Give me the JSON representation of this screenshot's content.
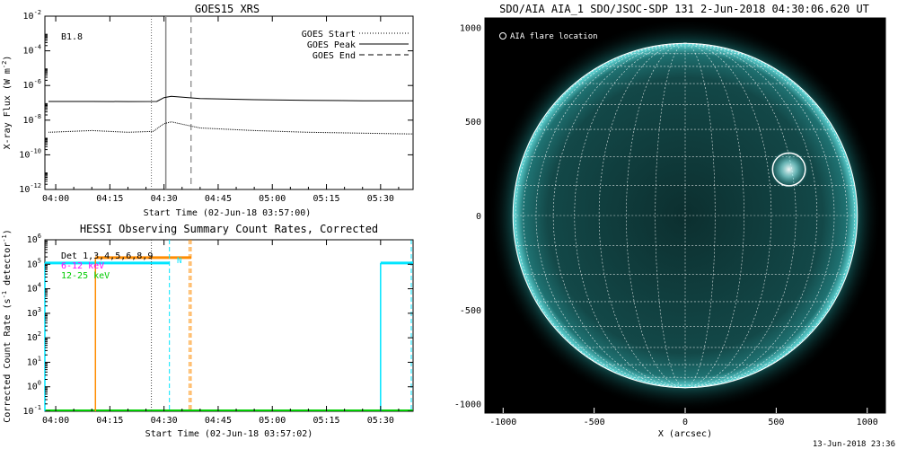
{
  "footer_timestamp": "13-Jun-2018 23:36",
  "colors": {
    "background": "#ffffff",
    "axes": "#000000",
    "goes_long": "#000000",
    "goes_short": "#000000",
    "hessi_det": "#000000",
    "hessi_band1": "#ff00ff",
    "hessi_band2": "#00cc00",
    "cyan_bars": "#00e5ff",
    "orange_bars": "#ff8c00",
    "sun_disk": "#0f3b3b",
    "sun_limb": "#7fffff",
    "grid": "#ffffff"
  },
  "chart_data": [
    {
      "type": "line",
      "title": "GOES15 XRS",
      "xlabel": "Start Time (02-Jun-18 03:57:00)",
      "ylabel": "X-ray Flux (W m^-2)",
      "ylabel_parts": {
        "main": "X-ray Flux (W m",
        "sup": "-2",
        "close": ")"
      },
      "yscale": "log",
      "xlim_min": [
        -3,
        99
      ],
      "ylim_exp": [
        -12,
        -2
      ],
      "x_ticks": [
        "04:00",
        "04:15",
        "04:30",
        "04:45",
        "05:00",
        "05:15",
        "05:30"
      ],
      "x_tick_min": [
        0,
        15,
        30,
        45,
        60,
        75,
        90
      ],
      "y_tick_exp": [
        -12,
        -10,
        -8,
        -6,
        -4,
        -2
      ],
      "annotation": "B1.8",
      "legend": [
        {
          "label": "GOES Start",
          "style": "dotted"
        },
        {
          "label": "GOES Peak",
          "style": "solid"
        },
        {
          "label": "GOES End",
          "style": "dashed"
        }
      ],
      "event_lines_min": {
        "start": 26.5,
        "peak": 30.5,
        "end": 37.5
      },
      "series": [
        {
          "name": "long",
          "x": [
            -2,
            10,
            20,
            28,
            30,
            32,
            40,
            55,
            70,
            85,
            99
          ],
          "y_exp": [
            -6.92,
            -6.92,
            -6.93,
            -6.92,
            -6.7,
            -6.62,
            -6.75,
            -6.82,
            -6.86,
            -6.88,
            -6.88
          ]
        },
        {
          "name": "short",
          "x": [
            -2,
            10,
            20,
            27,
            30,
            32,
            40,
            55,
            70,
            85,
            99
          ],
          "y_exp": [
            -8.7,
            -8.6,
            -8.7,
            -8.65,
            -8.2,
            -8.1,
            -8.45,
            -8.6,
            -8.7,
            -8.75,
            -8.8
          ]
        }
      ]
    },
    {
      "type": "line",
      "title": "HESSI Observing Summary Count Rates, Corrected",
      "xlabel": "Start Time (02-Jun-18 03:57:02)",
      "ylabel": "Corrected Count Rate (s^-1 detector^-1)",
      "ylabel_parts": {
        "main": "Corrected Count Rate (s",
        "sup1": "-1",
        "mid": " detector",
        "sup2": "-1",
        "close": ")"
      },
      "yscale": "log",
      "xlim_min": [
        -3,
        99
      ],
      "ylim_exp": [
        -1,
        6
      ],
      "x_ticks": [
        "04:00",
        "04:15",
        "04:30",
        "04:45",
        "05:00",
        "05:15",
        "05:30"
      ],
      "x_tick_min": [
        0,
        15,
        30,
        45,
        60,
        75,
        90
      ],
      "y_tick_exp": [
        -1,
        0,
        1,
        2,
        3,
        4,
        5,
        6
      ],
      "legend": [
        {
          "label": "Det 1,3,4,5,6,8,9",
          "color": "#000000"
        },
        {
          "label": "6-12 keV",
          "color": "#ff00ff"
        },
        {
          "label": "12-25 keV",
          "color": "#00cc00"
        }
      ],
      "flag_letter": "N",
      "vlines_min": {
        "dotted_black": 26.5,
        "cyan_dashed": 31.5,
        "orange_dashed_a": 37,
        "orange_dashed_b": 37.5
      },
      "cyan_intervals_min": [
        [
          -3,
          31.5
        ],
        [
          90,
          99
        ]
      ],
      "orange_interval_min": [
        11,
        37.5
      ],
      "orange_solid_min": 11,
      "cyan_solid_min": [
        -3,
        90
      ],
      "level_exp": 5.05,
      "baseline_exp": -1
    },
    {
      "type": "heatmap",
      "title": "SDO/AIA AIA_1 SDO/JSOC-SDP 131  2-Jun-2018 04:30:06.620 UT",
      "xlabel": "X (arcsec)",
      "ylabel": "",
      "xlim": [
        -1100,
        1100
      ],
      "ylim": [
        -1050,
        1050
      ],
      "x_ticks": [
        -1000,
        -500,
        0,
        500,
        1000
      ],
      "y_ticks": [
        -1000,
        -500,
        0,
        500,
        1000
      ],
      "sun_radius_arcsec": 946,
      "grid_spacing_deg": 10,
      "legend_label": "AIA flare location",
      "flare_location": {
        "x": 570,
        "y": 245,
        "radius": 90
      }
    }
  ]
}
